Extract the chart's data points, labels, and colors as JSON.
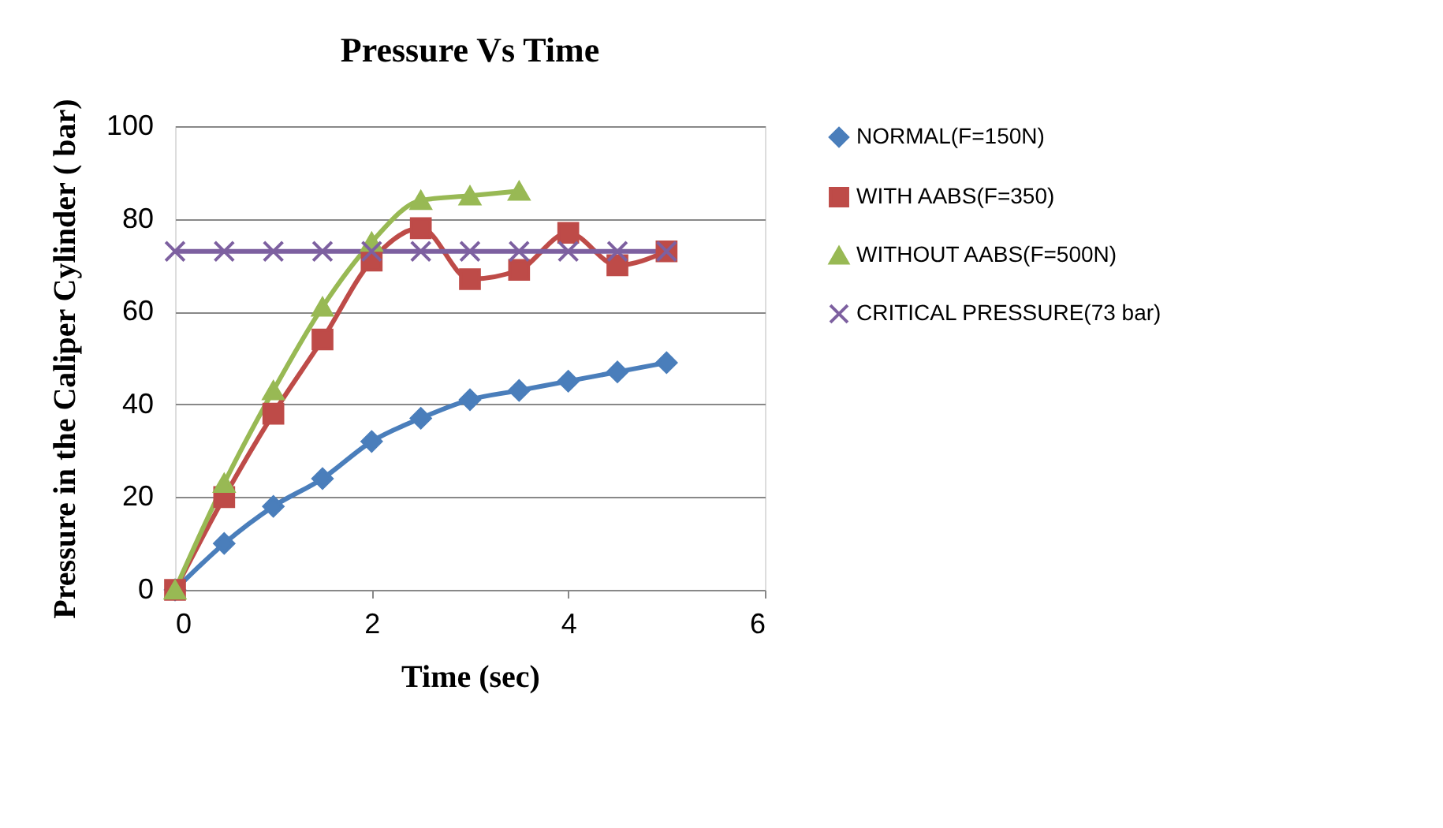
{
  "chart_data": {
    "type": "line",
    "title": "Pressure Vs Time",
    "xlabel": "Time (sec)",
    "ylabel": "Pressure in the Caliper Cylinder ( bar)",
    "x": [
      0,
      0.5,
      1,
      1.5,
      2,
      2.5,
      3,
      3.5,
      4,
      4.5,
      5
    ],
    "series": [
      {
        "name": "NORMAL(F=150N)",
        "color": "#4a7ebb",
        "marker": "diamond",
        "values": [
          0,
          10,
          18,
          24,
          32,
          37,
          41,
          43,
          45,
          47,
          49
        ]
      },
      {
        "name": "WITH AABS(F=350)",
        "color": "#be4b48",
        "marker": "square",
        "values": [
          0,
          20,
          38,
          54,
          71,
          78,
          67,
          69,
          77,
          70,
          73
        ]
      },
      {
        "name": "WITHOUT AABS(F=500N)",
        "color": "#98b954",
        "marker": "triangle",
        "values": [
          0,
          23,
          43,
          61,
          75,
          84,
          85,
          86,
          null,
          null,
          null
        ]
      },
      {
        "name": "CRITICAL PRESSURE(73 bar)",
        "color": "#7d60a0",
        "marker": "cross",
        "values": [
          73,
          73,
          73,
          73,
          73,
          73,
          73,
          73,
          73,
          73,
          73
        ]
      }
    ],
    "xlim": [
      0,
      6
    ],
    "xticks": [
      0,
      2,
      4,
      6
    ],
    "ylim": [
      0,
      100
    ],
    "yticks": [
      0,
      20,
      40,
      60,
      80,
      100
    ],
    "grid": "y",
    "legend": "right",
    "line_style": "solid"
  }
}
